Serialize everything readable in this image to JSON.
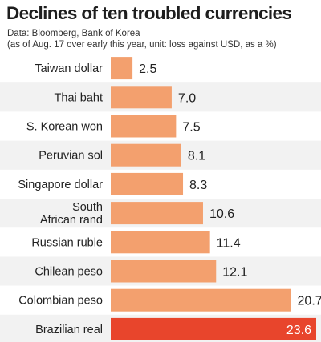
{
  "chart_data": {
    "type": "bar",
    "orientation": "horizontal",
    "title": "Declines of ten troubled currencies",
    "source": "Data: Bloomberg, Bank of Korea",
    "note": "(as of Aug. 17 over early this year, unit: loss against USD, as a %)",
    "categories": [
      "Taiwan dollar",
      "Thai baht",
      "S. Korean won",
      "Peruvian sol",
      "Singapore dollar",
      "South African rand",
      "Russian ruble",
      "Chilean peso",
      "Colombian peso",
      "Brazilian real"
    ],
    "category_lines": [
      [
        "Taiwan dollar"
      ],
      [
        "Thai baht"
      ],
      [
        "S. Korean won"
      ],
      [
        "Peruvian sol"
      ],
      [
        "Singapore dollar"
      ],
      [
        "South",
        "African rand"
      ],
      [
        "Russian ruble"
      ],
      [
        "Chilean peso"
      ],
      [
        "Colombian peso"
      ],
      [
        "Brazilian real"
      ]
    ],
    "values": [
      2.5,
      7.0,
      7.5,
      8.1,
      8.3,
      10.6,
      11.4,
      12.1,
      20.7,
      23.6
    ],
    "value_labels": [
      "2.5",
      "7.0",
      "7.5",
      "8.1",
      "8.3",
      "10.6",
      "11.4",
      "12.1",
      "20.7",
      "23.6"
    ],
    "xlim": [
      0,
      23.6
    ],
    "colors": {
      "bar": "#f3a06e",
      "highlight": "#e8452c",
      "row_band": "#f2f2f2",
      "highlight_label": "#ffffff"
    },
    "highlight_index": 9,
    "grid": false,
    "legend": "none"
  }
}
